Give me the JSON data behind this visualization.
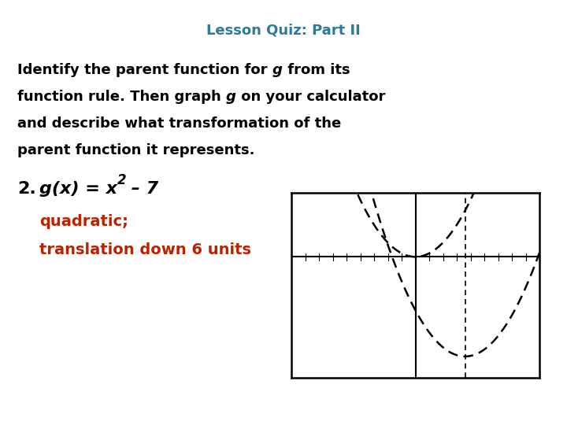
{
  "title": "Lesson Quiz: Part II",
  "title_color": "#2E7A9A",
  "title_fontsize": 13,
  "body_fontsize": 13,
  "item_fontsize": 14,
  "answer_color": "#BB2200",
  "answer_fontsize": 13,
  "background_color": "#FFFFFF",
  "graph_xlim": [
    -4.5,
    4.5
  ],
  "graph_ylim": [
    -8.5,
    4.5
  ],
  "graph_parabola2_shift": -7,
  "graph_line_color": "#000000"
}
